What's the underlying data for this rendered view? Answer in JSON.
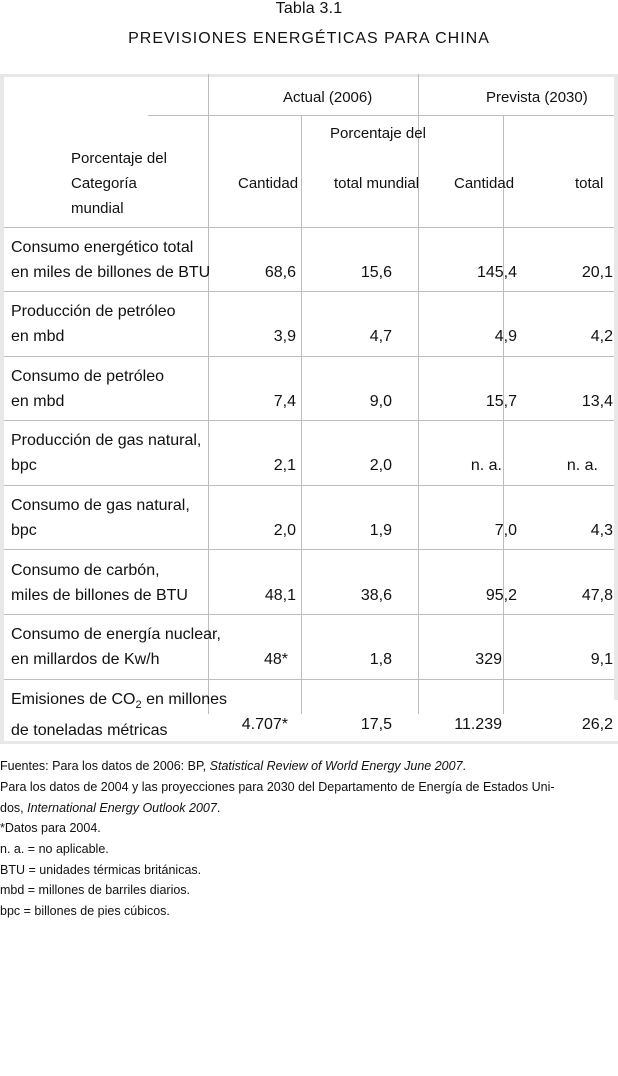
{
  "table_number": "Tabla 3.1",
  "table_title": "PREVISIONES ENERGÉTICAS PARA CHINA",
  "header": {
    "group_actual": "Actual (2006)",
    "group_prevista": "Prevista (2030)",
    "pct_label_top": "Porcentaje del",
    "col_categoria_lines": [
      "Porcentaje del",
      "Categoría",
      "mundial"
    ],
    "col_cantidad_actual": "Cantidad",
    "col_total_mundial": "total mundial",
    "col_cantidad_prevista": "Cantidad",
    "col_total": "total"
  },
  "rows": [
    {
      "line1": "Consumo energético total",
      "line2": "en miles de billones de BTU",
      "v1": "68,6",
      "v2": "15,6",
      "v3": "145,4",
      "v4": "20,1"
    },
    {
      "line1": "Producción de petróleo",
      "line2": "en mbd",
      "v1": "3,9",
      "v2": "4,7",
      "v3": "4,9",
      "v4": "4,2"
    },
    {
      "line1": "Consumo de petróleo",
      "line2": "en mbd",
      "v1": "7,4",
      "v2": "9,0",
      "v3": "15,7",
      "v4": "13,4"
    },
    {
      "line1": "Producción de gas natural,",
      "line2": "bpc",
      "v1": "2,1",
      "v2": "2,0",
      "v3": "n. a.",
      "v4": "n. a."
    },
    {
      "line1": "Consumo de gas natural,",
      "line2": "bpc",
      "v1": "2,0",
      "v2": "1,9",
      "v3": "7,0",
      "v4": "4,3"
    },
    {
      "line1": "Consumo de carbón,",
      "line2": "miles de billones de BTU",
      "v1": "48,1",
      "v2": "38,6",
      "v3": "95,2",
      "v4": "47,8"
    },
    {
      "line1": "Consumo de energía nuclear,",
      "line2": "en millardos de Kw/h",
      "v1": "48*",
      "v2": "1,8",
      "v3": "329",
      "v4": "9,1"
    },
    {
      "line1a": "Emisiones de CO",
      "line1sub": "2",
      "line1b": " en millones",
      "line2": "de toneladas métricas",
      "v1": "4.707*",
      "v2": "17,5",
      "v3": "11.239",
      "v4": "26,2"
    }
  ],
  "footnotes": {
    "f1_a": "Fuentes: Para los datos de 2006: BP, ",
    "f1_b": "Statistical Review of World Energy June 2007",
    "f1_c": ".",
    "f2_a": "Para los datos de 2004 y las proyecciones para 2030 del Departamento de Energía de Estados Uni-",
    "f2_b": "dos, ",
    "f2_c": "International Energy Outlook 2007",
    "f2_d": ".",
    "f3": "*Datos para 2004.",
    "f4": "n. a. = no aplicable.",
    "f5": "BTU = unidades térmicas británicas.",
    "f6": "mbd = millones de barriles diarios.",
    "f7": "bpc = billones de pies cúbicos."
  }
}
